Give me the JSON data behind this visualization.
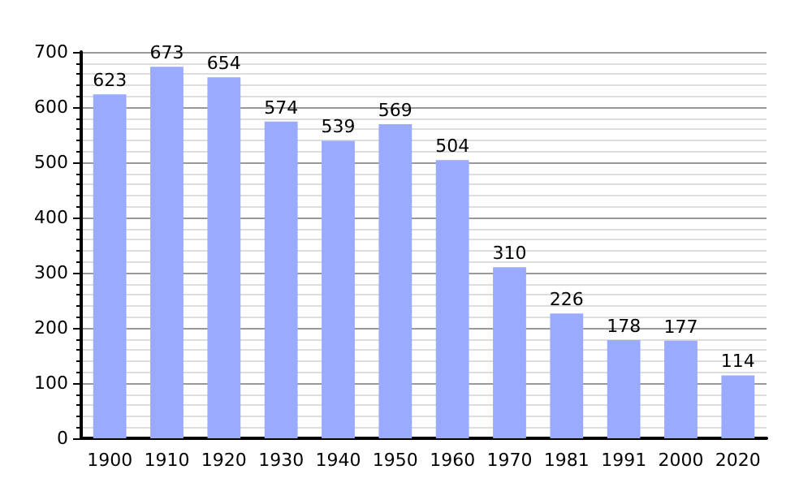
{
  "chart_data": {
    "type": "bar",
    "categories": [
      "1900",
      "1910",
      "1920",
      "1930",
      "1940",
      "1950",
      "1960",
      "1970",
      "1981",
      "1991",
      "2000",
      "2020"
    ],
    "values": [
      623,
      673,
      654,
      574,
      539,
      569,
      504,
      310,
      226,
      178,
      177,
      114
    ],
    "color": "#99aaff",
    "ylim": [
      0,
      700
    ],
    "yticks": [
      0,
      100,
      200,
      300,
      400,
      500,
      600,
      700
    ],
    "grid": "y",
    "data_labels": true
  }
}
